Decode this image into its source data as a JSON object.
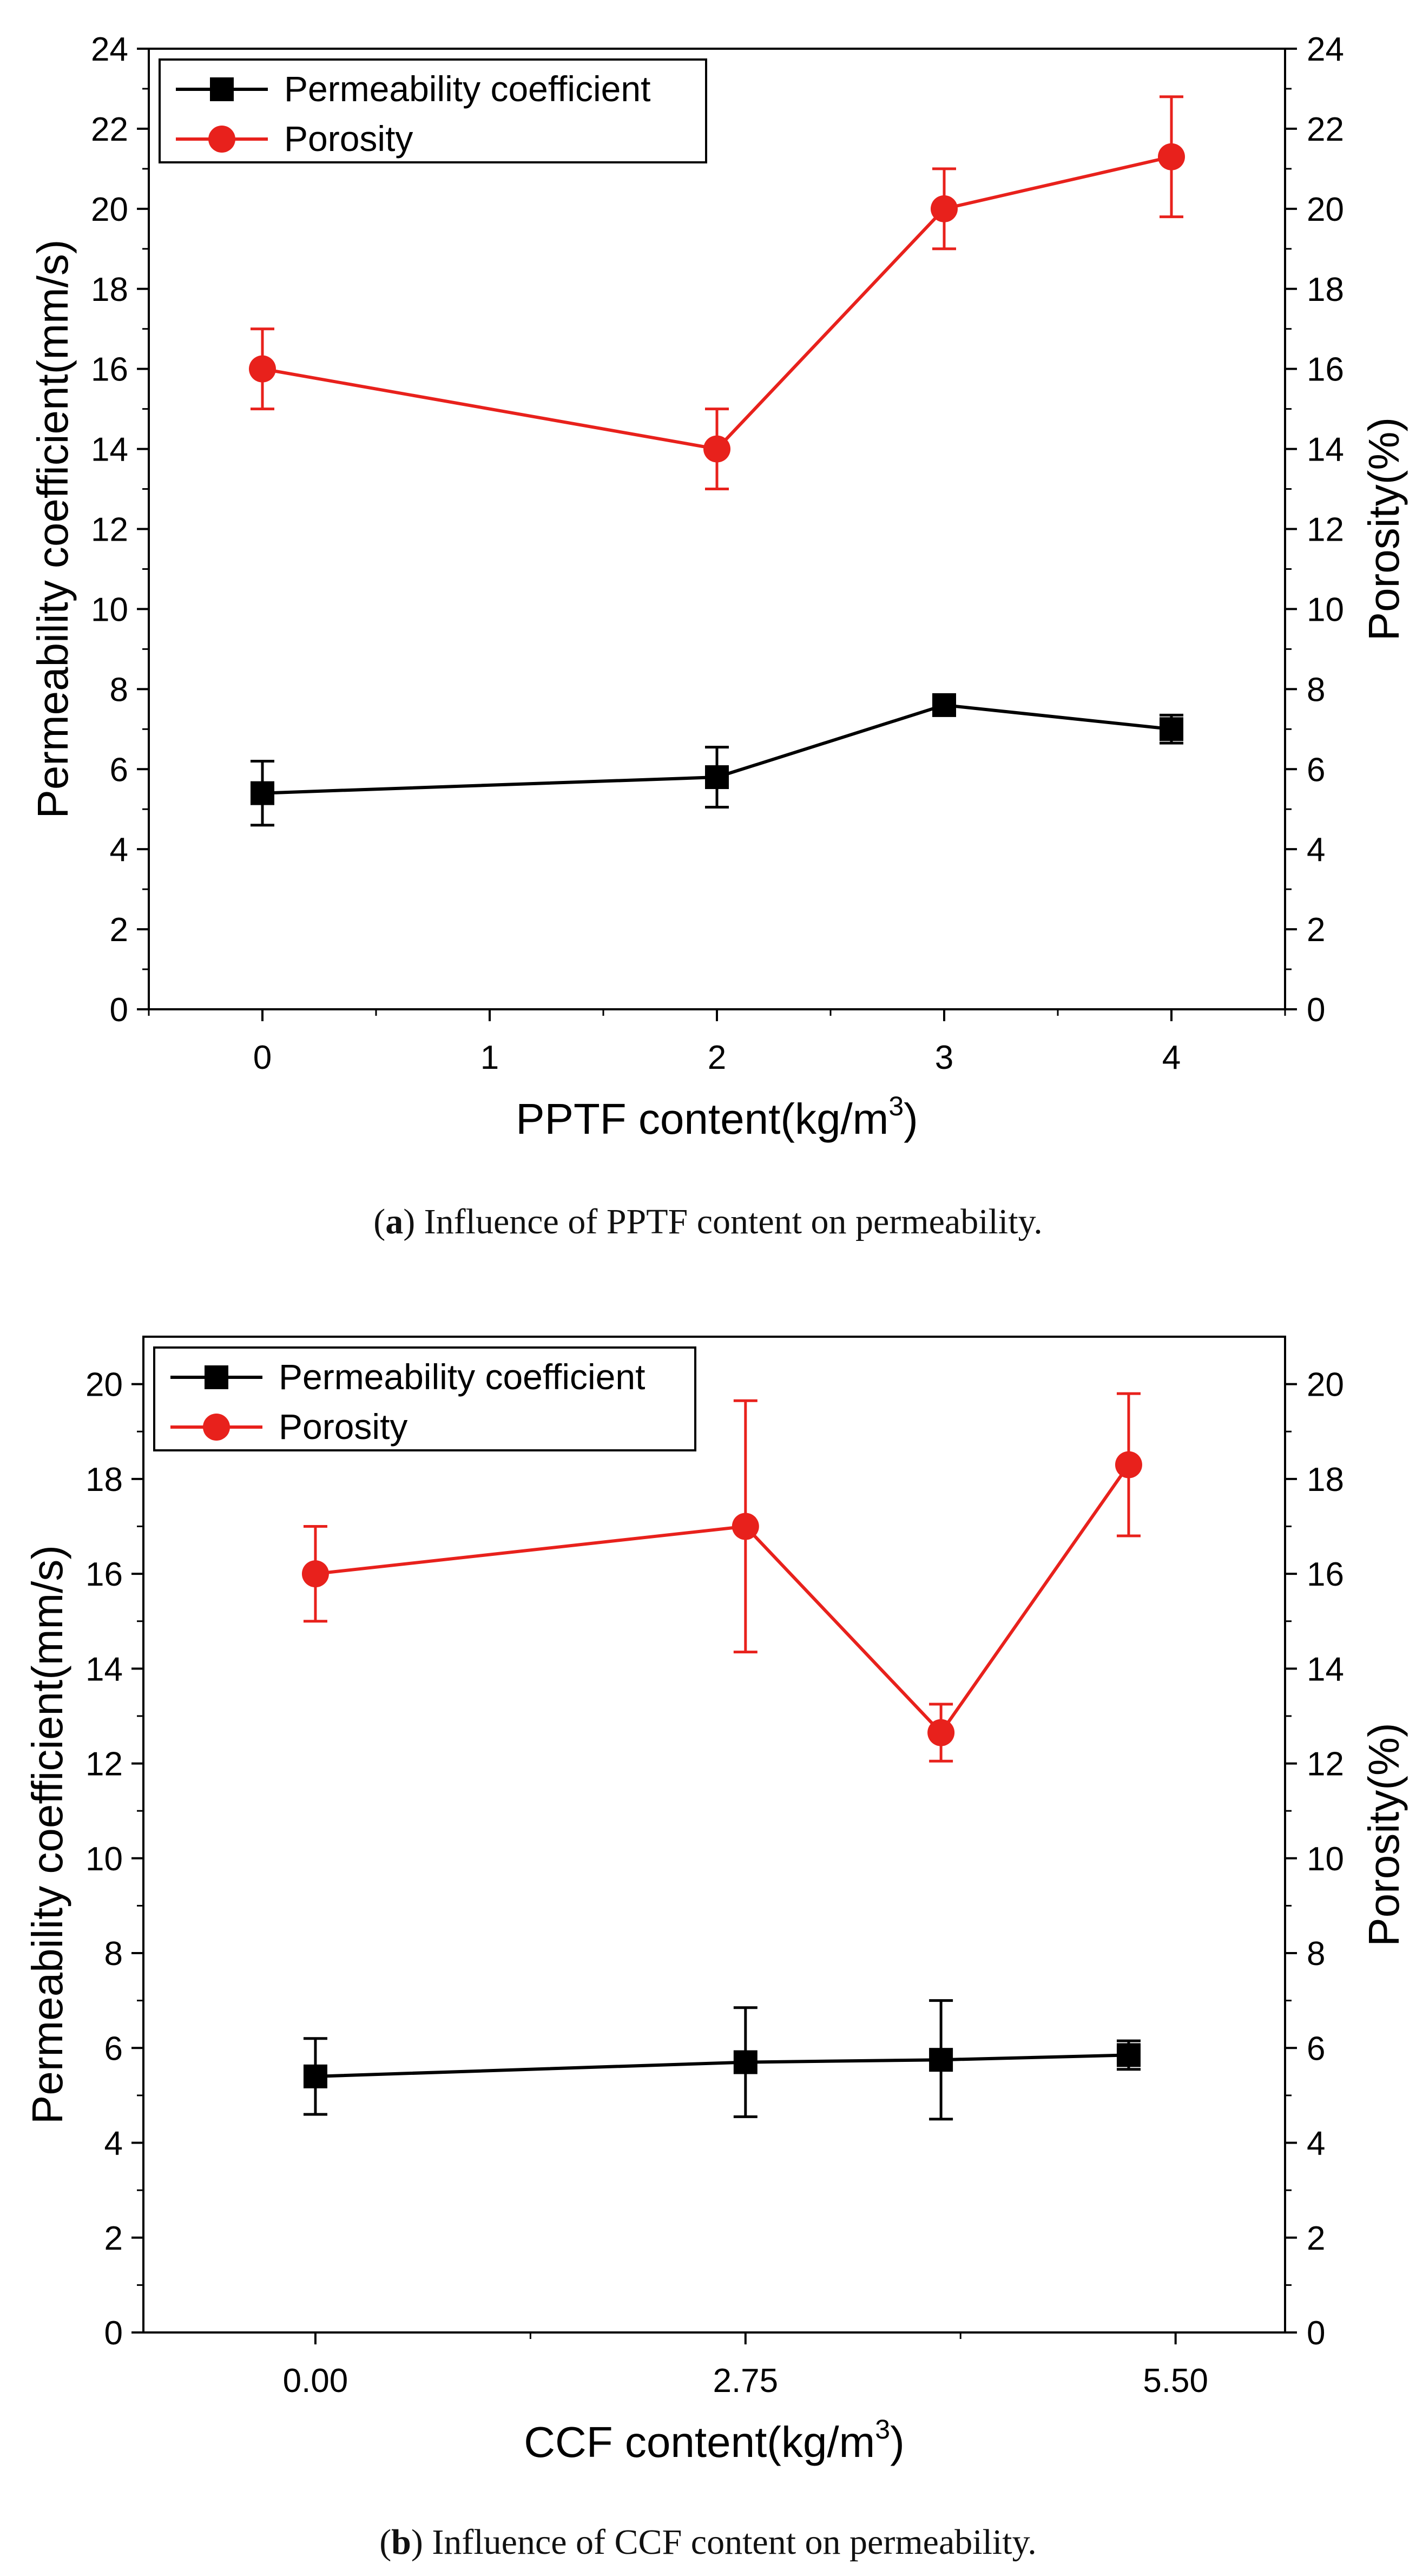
{
  "chart_data": [
    {
      "type": "line",
      "panel": "a",
      "xlabel": "PPTF content(kg/m",
      "xlabel_sup": "3",
      "xlabel_end": ")",
      "ylabel_left": "Permeability coefficient(mm/s)",
      "ylabel_right": "Porosity(%)",
      "xlim": [
        -0.5,
        4.5
      ],
      "ylim": [
        0,
        24
      ],
      "x_ticks": [
        0,
        1,
        2,
        3,
        4
      ],
      "x_tick_labels": [
        "0",
        "1",
        "2",
        "3",
        "4"
      ],
      "y_ticks": [
        0,
        2,
        4,
        6,
        8,
        10,
        12,
        14,
        16,
        18,
        20,
        22,
        24
      ],
      "y_tick_labels": [
        "0",
        "2",
        "4",
        "6",
        "8",
        "10",
        "12",
        "14",
        "16",
        "18",
        "20",
        "22",
        "24"
      ],
      "legend_position": "top-left",
      "series": [
        {
          "name": "Permeability coefficient",
          "color": "#000000",
          "marker": "square",
          "x": [
            0,
            2,
            3,
            4
          ],
          "y": [
            5.4,
            5.8,
            7.6,
            7.0
          ],
          "err": [
            0.8,
            0.75,
            0.2,
            0.35
          ]
        },
        {
          "name": "Porosity",
          "color": "#e8211c",
          "marker": "circle",
          "x": [
            0,
            2,
            3,
            4
          ],
          "y": [
            16.0,
            14.0,
            20.0,
            21.3
          ],
          "err": [
            1.0,
            1.0,
            1.0,
            1.5
          ]
        }
      ],
      "caption_label": "a",
      "caption_text": " Influence of PPTF content on permeability."
    },
    {
      "type": "line",
      "panel": "b",
      "xlabel": "CCF content(kg/m",
      "xlabel_sup": "3",
      "xlabel_end": ")",
      "ylabel_left": "Permeability coefficient(mm/s)",
      "ylabel_right": "Porosity(%)",
      "xlim": [
        -1.1,
        6.2
      ],
      "ylim": [
        0,
        21
      ],
      "x_ticks": [
        0,
        2.75,
        5.5
      ],
      "x_tick_labels": [
        "0.00",
        "2.75",
        "5.50"
      ],
      "x_minor_ticks": [
        1.375,
        4.125
      ],
      "y_ticks": [
        0,
        2,
        4,
        6,
        8,
        10,
        12,
        14,
        16,
        18,
        20
      ],
      "y_tick_labels": [
        "0",
        "2",
        "4",
        "6",
        "8",
        "10",
        "12",
        "14",
        "16",
        "18",
        "20"
      ],
      "legend_position": "top-left",
      "series": [
        {
          "name": "Permeability coefficient",
          "color": "#000000",
          "marker": "square",
          "x": [
            0,
            2.75,
            4.0,
            5.2
          ],
          "y": [
            5.4,
            5.7,
            5.75,
            5.85
          ],
          "err": [
            0.8,
            1.15,
            1.25,
            0.3
          ]
        },
        {
          "name": "Porosity",
          "color": "#e8211c",
          "marker": "circle",
          "x": [
            0,
            2.75,
            4.0,
            5.2
          ],
          "y": [
            16.0,
            17.0,
            12.65,
            18.3
          ],
          "err": [
            1.0,
            2.65,
            0.6,
            1.5
          ]
        }
      ],
      "caption_label": "b",
      "caption_text": " Influence of CCF content on permeability."
    }
  ]
}
